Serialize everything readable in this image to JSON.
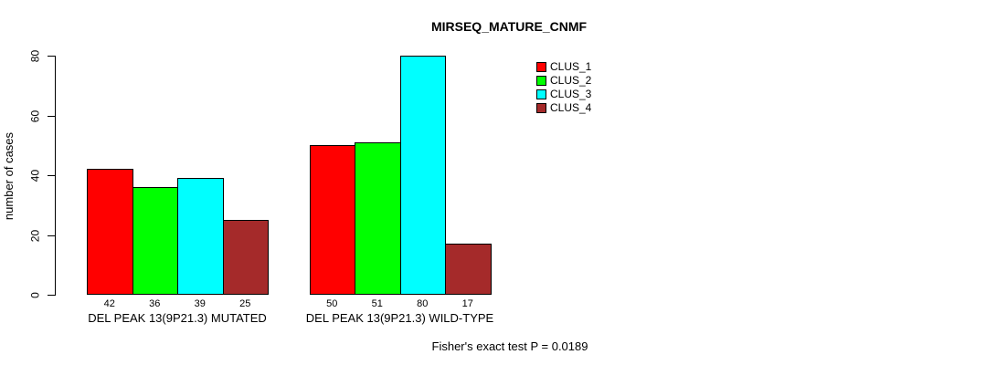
{
  "chart_data": {
    "type": "bar",
    "title": "MIRSEQ_MATURE_CNMF",
    "ylabel": "number of cases",
    "xlabel": "",
    "ylim": [
      0,
      80
    ],
    "yticks": [
      0,
      20,
      40,
      60,
      80
    ],
    "grid": false,
    "legend_position": "right",
    "categories": [
      "DEL PEAK 13(9P21.3) MUTATED",
      "DEL PEAK 13(9P21.3) WILD-TYPE"
    ],
    "series": [
      {
        "name": "CLUS_1",
        "color": "#FF0000",
        "values": [
          42,
          50
        ]
      },
      {
        "name": "CLUS_2",
        "color": "#00FF00",
        "values": [
          36,
          51
        ]
      },
      {
        "name": "CLUS_3",
        "color": "#00FFFF",
        "values": [
          39,
          80
        ]
      },
      {
        "name": "CLUS_4",
        "color": "#A52A2A",
        "values": [
          25,
          17
        ]
      }
    ],
    "bar_value_labels": [
      [
        42,
        36,
        39,
        25
      ],
      [
        50,
        51,
        80,
        17
      ]
    ],
    "annotation": "Fisher's exact test P = 0.0189"
  }
}
